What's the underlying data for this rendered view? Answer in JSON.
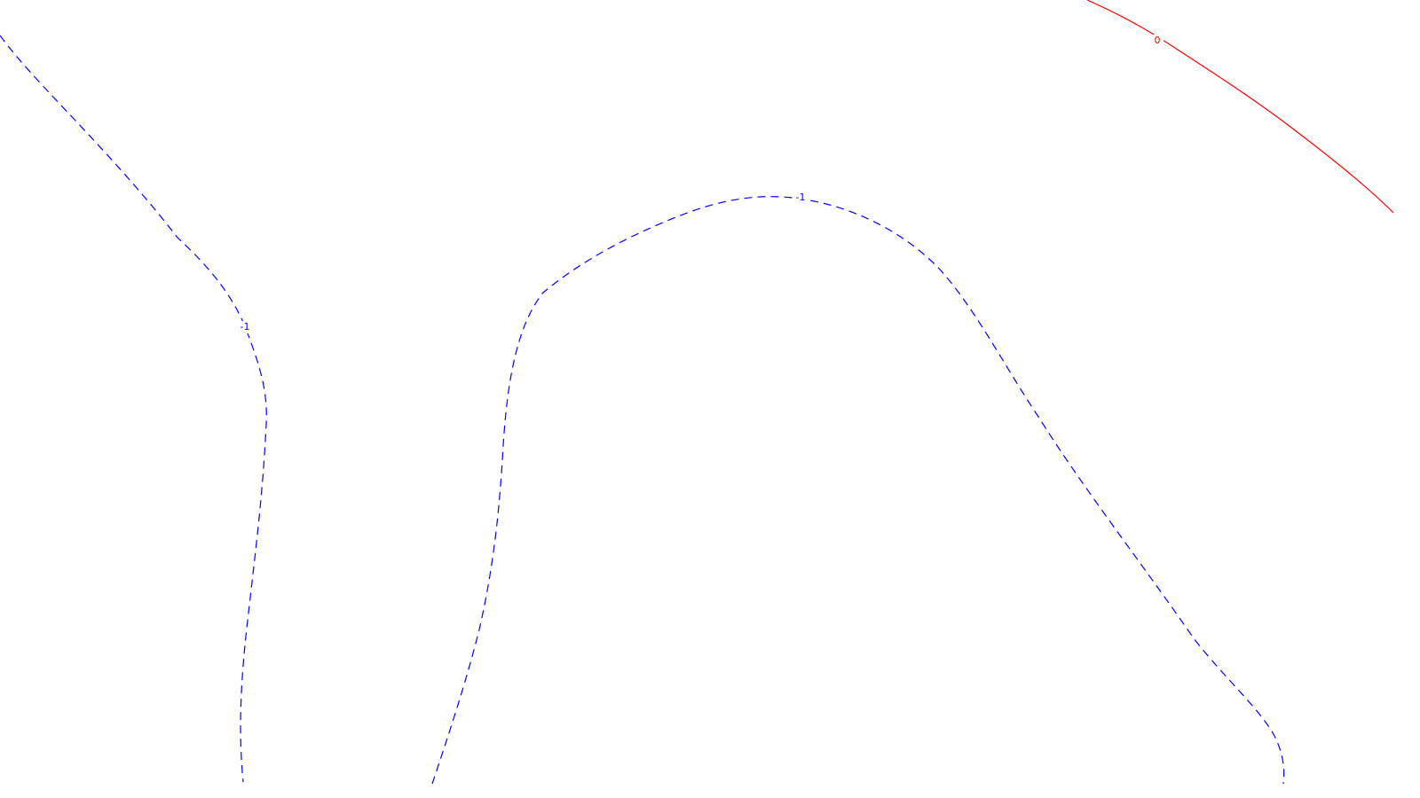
{
  "map": {
    "background_color": "#ffffff",
    "contour_colors": {
      "zero": "#ff0000",
      "negative": "#0000ff"
    },
    "contours": [
      {
        "id": "left",
        "level_label": "-1",
        "color_key": "negative",
        "style": "dashed"
      },
      {
        "id": "middle",
        "level_label": "-1",
        "color_key": "negative",
        "style": "dashed"
      },
      {
        "id": "zero",
        "level_label": "0",
        "color_key": "zero",
        "style": "solid"
      }
    ]
  }
}
